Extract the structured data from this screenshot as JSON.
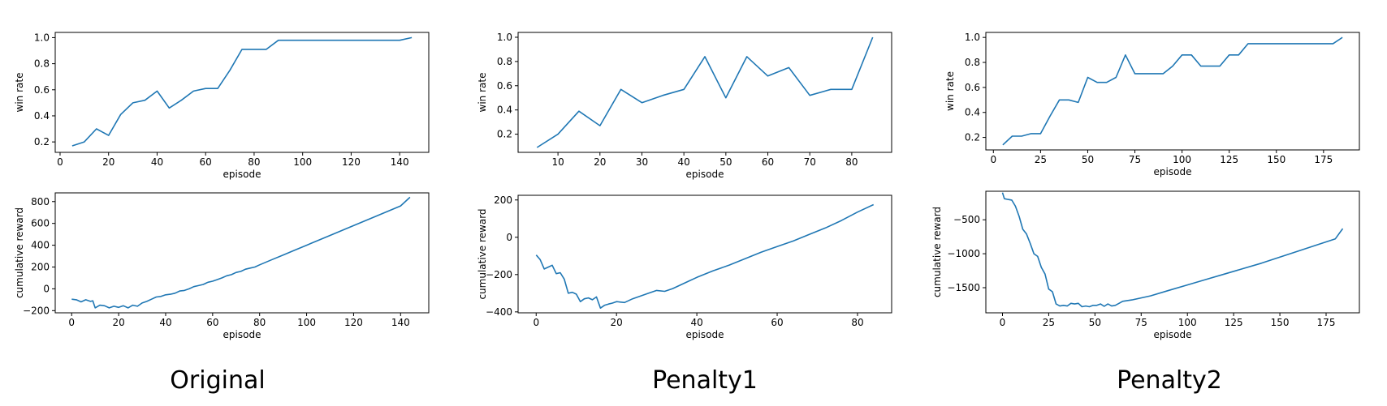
{
  "captions": [
    "Original",
    "Penalty1",
    "Penalty2"
  ],
  "colors": {
    "line": "#1f77b4",
    "axes": "#000000"
  },
  "chart_data": [
    {
      "type": "line",
      "group": "Original",
      "xlabel": "episode",
      "ylabel": "win rate",
      "xlim": [
        -2,
        152
      ],
      "ylim": [
        0.12,
        1.04
      ],
      "xticks": [
        0,
        20,
        40,
        60,
        80,
        100,
        120,
        140
      ],
      "yticks": [
        0.2,
        0.4,
        0.6,
        0.8,
        1.0
      ],
      "ytick_labels": [
        "0.2",
        "0.4",
        "0.6",
        "0.8",
        "1.0"
      ],
      "series": [
        {
          "x": [
            5,
            10,
            15,
            20,
            25,
            30,
            35,
            40,
            45,
            50,
            55,
            60,
            65,
            70,
            75,
            80,
            85,
            90,
            95,
            100,
            105,
            110,
            115,
            120,
            125,
            130,
            135,
            140,
            145
          ],
          "y": [
            0.17,
            0.2,
            0.3,
            0.25,
            0.41,
            0.5,
            0.52,
            0.59,
            0.46,
            0.52,
            0.59,
            0.61,
            0.61,
            0.75,
            0.91,
            0.91,
            0.91,
            0.98,
            0.98,
            0.98,
            0.98,
            0.98,
            0.98,
            0.98,
            0.98,
            0.98,
            0.98,
            0.98,
            1.0
          ]
        }
      ]
    },
    {
      "type": "line",
      "group": "Original",
      "xlabel": "episode",
      "ylabel": "cumulative reward",
      "xlim": [
        -7,
        152
      ],
      "ylim": [
        -220,
        880
      ],
      "xticks": [
        0,
        20,
        40,
        60,
        80,
        100,
        120,
        140
      ],
      "yticks": [
        -200,
        0,
        200,
        400,
        600,
        800
      ],
      "ytick_labels": [
        "−200",
        "0",
        "200",
        "400",
        "600",
        "800"
      ],
      "series": [
        {
          "x": [
            0,
            2,
            4,
            6,
            8,
            9,
            10,
            12,
            14,
            16,
            18,
            20,
            22,
            24,
            26,
            28,
            30,
            32,
            34,
            36,
            38,
            40,
            42,
            44,
            46,
            48,
            50,
            52,
            54,
            56,
            58,
            60,
            62,
            64,
            66,
            68,
            70,
            72,
            74,
            76,
            78,
            80,
            85,
            90,
            95,
            100,
            110,
            120,
            130,
            140,
            144
          ],
          "y": [
            -95,
            -100,
            -120,
            -100,
            -115,
            -110,
            -175,
            -150,
            -155,
            -175,
            -160,
            -170,
            -155,
            -175,
            -150,
            -160,
            -130,
            -115,
            -95,
            -75,
            -70,
            -55,
            -50,
            -40,
            -20,
            -15,
            0,
            20,
            30,
            40,
            60,
            70,
            85,
            100,
            120,
            130,
            150,
            160,
            180,
            190,
            200,
            220,
            265,
            310,
            355,
            400,
            490,
            580,
            670,
            760,
            840
          ]
        }
      ]
    },
    {
      "type": "line",
      "group": "Penalty1",
      "xlabel": "episode",
      "ylabel": "win rate",
      "xlim": [
        0.5,
        89.5
      ],
      "ylim": [
        0.05,
        1.04
      ],
      "xticks": [
        10,
        20,
        30,
        40,
        50,
        60,
        70,
        80
      ],
      "yticks": [
        0.2,
        0.4,
        0.6,
        0.8,
        1.0
      ],
      "ytick_labels": [
        "0.2",
        "0.4",
        "0.6",
        "0.8",
        "1.0"
      ],
      "series": [
        {
          "x": [
            5,
            10,
            15,
            20,
            25,
            30,
            35,
            40,
            45,
            50,
            55,
            60,
            65,
            70,
            75,
            80,
            85
          ],
          "y": [
            0.09,
            0.2,
            0.39,
            0.27,
            0.57,
            0.46,
            0.52,
            0.57,
            0.84,
            0.5,
            0.84,
            0.68,
            0.75,
            0.52,
            0.57,
            0.57,
            1.0
          ]
        }
      ]
    },
    {
      "type": "line",
      "group": "Penalty1",
      "xlabel": "episode",
      "ylabel": "cumulative reward",
      "xlim": [
        -4.5,
        88.5
      ],
      "ylim": [
        -405,
        225
      ],
      "xticks": [
        0,
        20,
        40,
        60,
        80
      ],
      "yticks": [
        -400,
        -200,
        0,
        200
      ],
      "ytick_labels": [
        "−400",
        "−200",
        "0",
        "200"
      ],
      "series": [
        {
          "x": [
            0,
            1,
            2,
            3,
            4,
            5,
            6,
            7,
            8,
            9,
            10,
            11,
            12,
            13,
            14,
            15,
            16,
            17,
            18,
            19,
            20,
            22,
            24,
            26,
            28,
            30,
            32,
            34,
            36,
            38,
            40,
            44,
            48,
            52,
            56,
            60,
            64,
            68,
            72,
            76,
            80,
            84
          ],
          "y": [
            -95,
            -120,
            -170,
            -160,
            -150,
            -195,
            -190,
            -225,
            -300,
            -295,
            -305,
            -345,
            -330,
            -325,
            -335,
            -320,
            -380,
            -365,
            -358,
            -353,
            -345,
            -350,
            -330,
            -315,
            -300,
            -285,
            -290,
            -275,
            -255,
            -235,
            -215,
            -180,
            -150,
            -115,
            -80,
            -50,
            -20,
            15,
            50,
            90,
            135,
            175
          ]
        }
      ]
    },
    {
      "type": "line",
      "group": "Penalty2",
      "xlabel": "episode",
      "ylabel": "win rate",
      "xlim": [
        -4,
        194
      ],
      "ylim": [
        0.1,
        1.04
      ],
      "xticks": [
        0,
        25,
        50,
        75,
        100,
        125,
        150,
        175
      ],
      "yticks": [
        0.2,
        0.4,
        0.6,
        0.8,
        1.0
      ],
      "ytick_labels": [
        "0.2",
        "0.4",
        "0.6",
        "0.8",
        "1.0"
      ],
      "series": [
        {
          "x": [
            5,
            10,
            15,
            20,
            25,
            30,
            35,
            40,
            45,
            50,
            55,
            60,
            65,
            70,
            75,
            80,
            85,
            90,
            95,
            100,
            105,
            110,
            115,
            120,
            125,
            130,
            135,
            140,
            145,
            150,
            155,
            160,
            165,
            170,
            175,
            180,
            185
          ],
          "y": [
            0.14,
            0.21,
            0.21,
            0.23,
            0.23,
            0.37,
            0.5,
            0.5,
            0.48,
            0.68,
            0.64,
            0.64,
            0.68,
            0.86,
            0.71,
            0.71,
            0.71,
            0.71,
            0.77,
            0.86,
            0.86,
            0.77,
            0.77,
            0.77,
            0.86,
            0.86,
            0.95,
            0.95,
            0.95,
            0.95,
            0.95,
            0.95,
            0.95,
            0.95,
            0.95,
            0.95,
            1.0
          ]
        }
      ]
    },
    {
      "type": "line",
      "group": "Penalty2",
      "xlabel": "episode",
      "ylabel": "cumulative reward",
      "xlim": [
        -9,
        193
      ],
      "ylim": [
        -1870,
        -80
      ],
      "xticks": [
        0,
        25,
        50,
        75,
        100,
        125,
        150,
        175
      ],
      "yticks": [
        -1500,
        -1000,
        -500
      ],
      "ytick_labels": [
        "−1500",
        "−1000",
        "−500"
      ],
      "series": [
        {
          "x": [
            0,
            1,
            3,
            5,
            7,
            9,
            11,
            13,
            15,
            17,
            19,
            21,
            23,
            25,
            27,
            29,
            31,
            33,
            35,
            37,
            39,
            41,
            43,
            45,
            47,
            49,
            51,
            53,
            55,
            57,
            59,
            61,
            63,
            65,
            70,
            80,
            90,
            100,
            110,
            120,
            130,
            140,
            150,
            160,
            170,
            180,
            184
          ],
          "y": [
            -100,
            -190,
            -200,
            -210,
            -300,
            -450,
            -640,
            -710,
            -850,
            -1000,
            -1040,
            -1200,
            -1300,
            -1520,
            -1560,
            -1740,
            -1770,
            -1760,
            -1770,
            -1730,
            -1740,
            -1730,
            -1780,
            -1770,
            -1780,
            -1760,
            -1760,
            -1740,
            -1775,
            -1740,
            -1770,
            -1760,
            -1730,
            -1700,
            -1680,
            -1620,
            -1540,
            -1460,
            -1380,
            -1300,
            -1220,
            -1140,
            -1050,
            -960,
            -870,
            -780,
            -630
          ]
        }
      ]
    }
  ]
}
